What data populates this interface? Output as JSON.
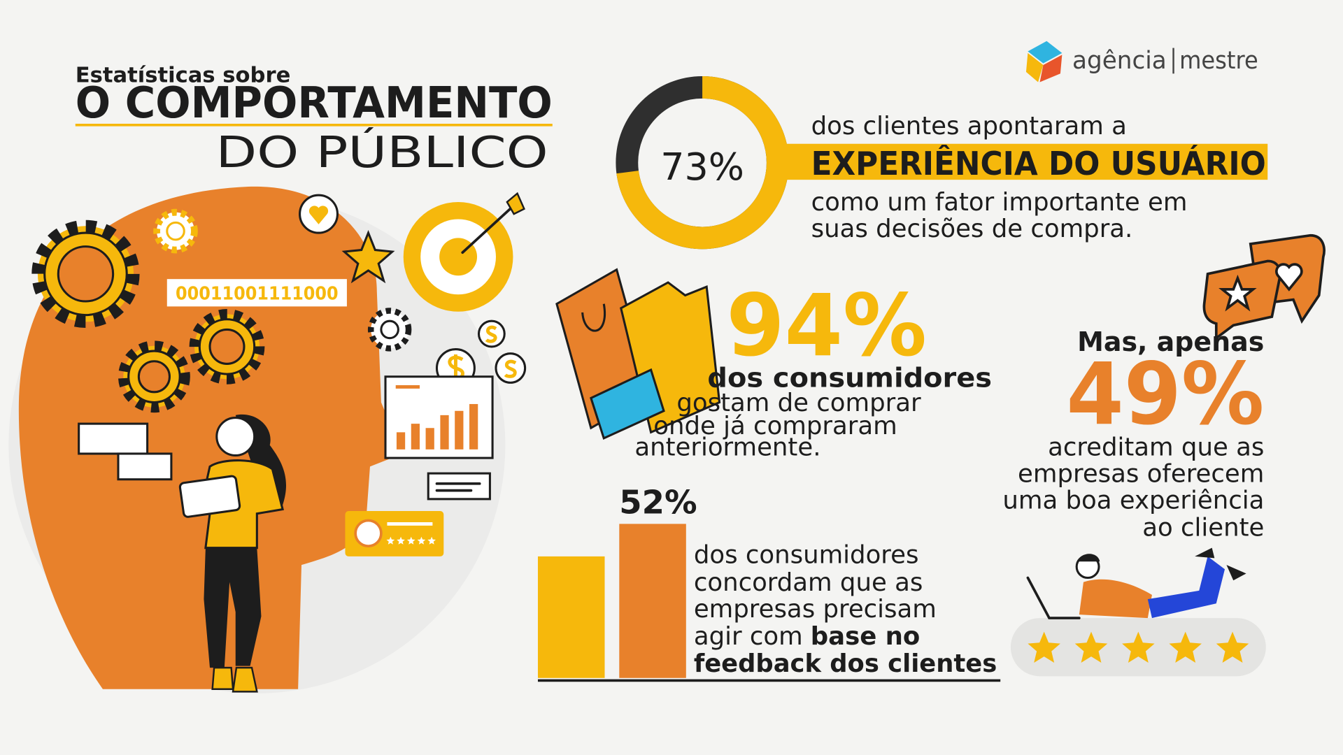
{
  "brand": {
    "first": "agência",
    "second": "mestre"
  },
  "header": {
    "kicker": "Estatísticas sobre",
    "title": "O COMPORTAMENTO",
    "subtitle": "DO PÚBLICO"
  },
  "binary": "00011001111000",
  "stat_ux": {
    "value": 73,
    "label": "73%",
    "lead": "dos clientes apontaram a",
    "highlight": "EXPERIÊNCIA DO USUÁRIO",
    "lines": [
      "como um fator importante em",
      "suas decisões de compra."
    ]
  },
  "stat_repeat": {
    "label": "94%",
    "bold": "dos consumidores",
    "lines": [
      "gostam de comprar",
      "onde já compraram",
      "anteriormente."
    ]
  },
  "stat_feedback": {
    "label": "52%",
    "lines": [
      "dos consumidores",
      "concordam que as",
      "empresas precisam"
    ],
    "line4": "agir com",
    "line4_bold": "base no",
    "line5_bold": "feedback dos clientes"
  },
  "stat_experience": {
    "intro": "Mas, apenas",
    "label": "49%",
    "lines": [
      "acreditam que as",
      "empresas oferecem",
      "uma boa experiência",
      "ao cliente"
    ]
  }
}
